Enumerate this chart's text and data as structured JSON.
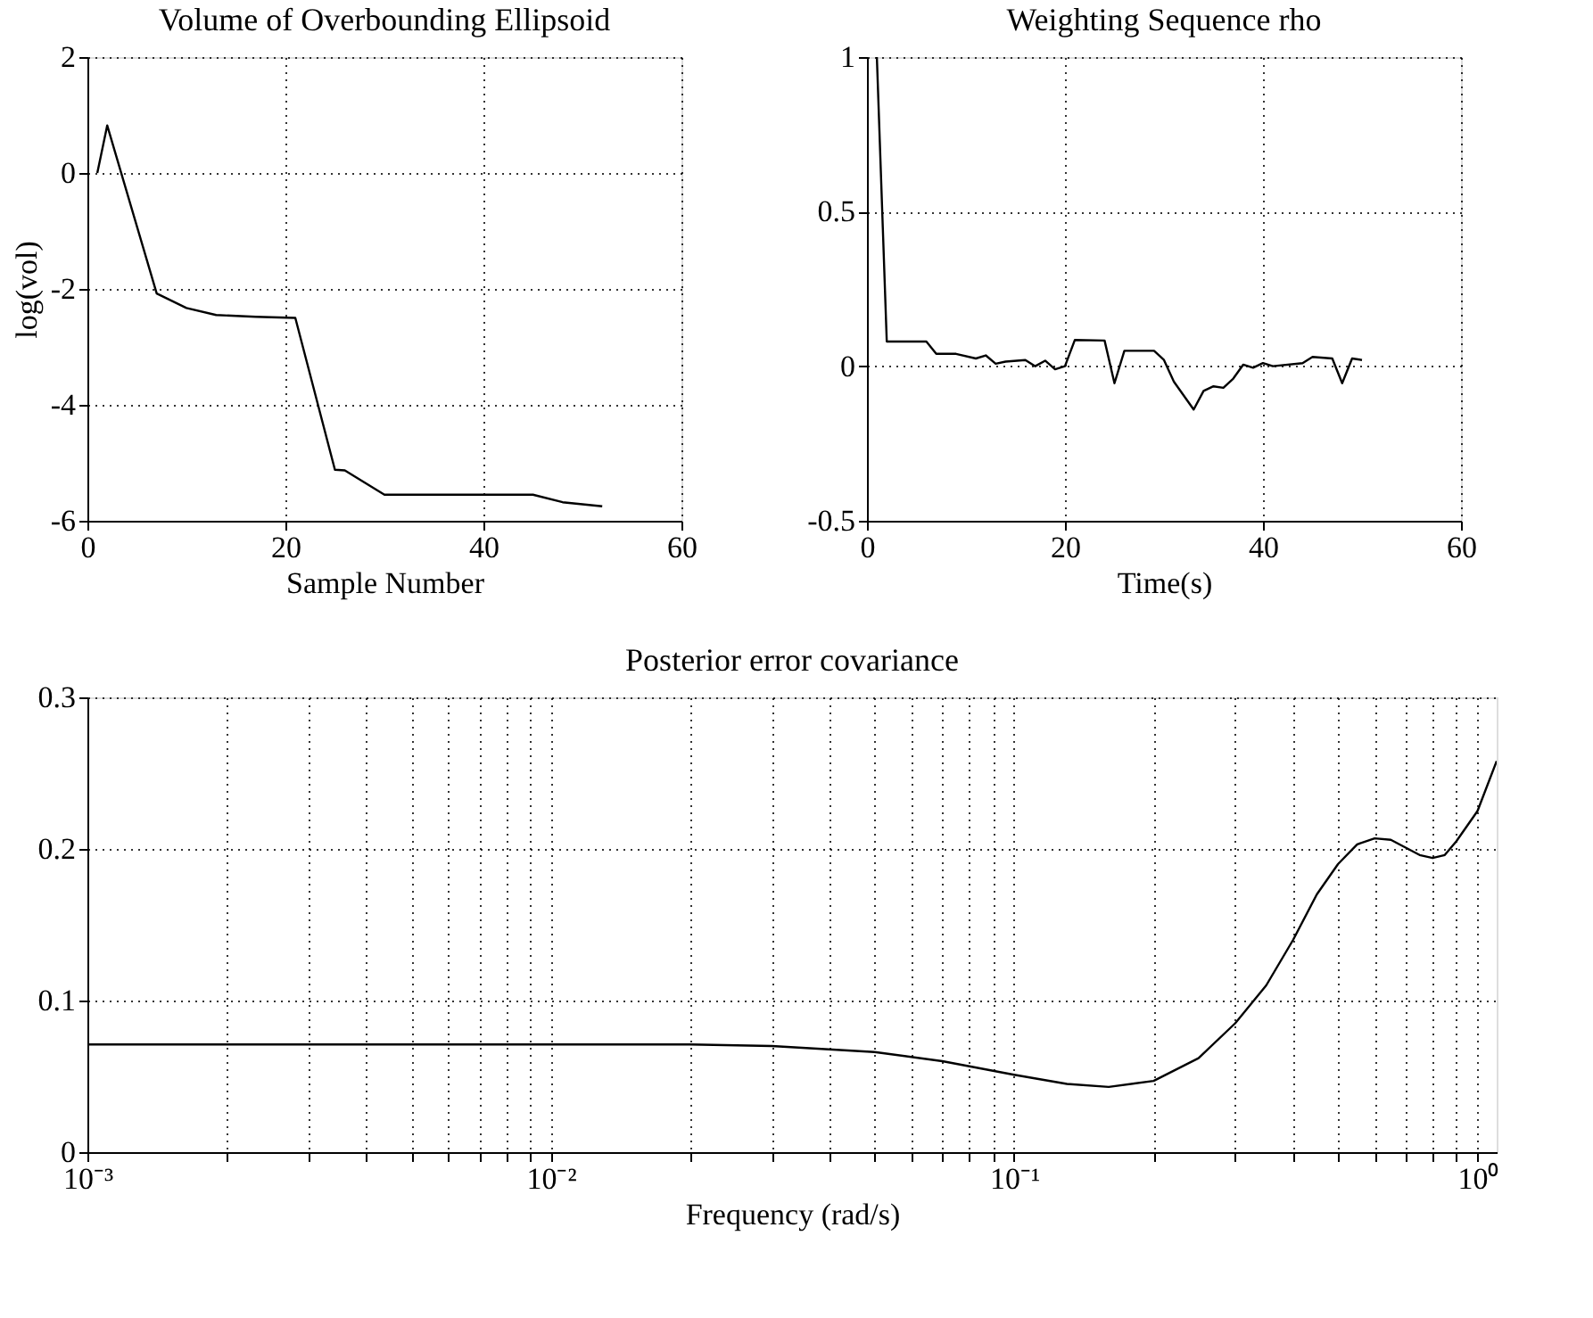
{
  "chart_data": [
    {
      "type": "line",
      "title": "Volume of Overbounding Ellipsoid",
      "xlabel": "Sample Number",
      "ylabel": "log(vol)",
      "grid": true,
      "xlim": [
        0,
        60
      ],
      "ylim": [
        -6,
        2
      ],
      "xticks": [
        0,
        20,
        40,
        60
      ],
      "yticks": [
        -6,
        -4,
        -2,
        0,
        2
      ],
      "series": [
        {
          "color": "#000000",
          "x": [
            1,
            2,
            7,
            10,
            13,
            17,
            21,
            25,
            26,
            30,
            45,
            48,
            52
          ],
          "values": [
            0,
            0.82,
            -2.08,
            -2.33,
            -2.45,
            -2.48,
            -2.5,
            -5.12,
            -5.13,
            -5.55,
            -5.55,
            -5.68,
            -5.75
          ]
        }
      ]
    },
    {
      "type": "line",
      "title": "Weighting Sequence rho",
      "xlabel": "Time(s)",
      "grid": true,
      "xlim": [
        0,
        60
      ],
      "ylim": [
        -0.5,
        1
      ],
      "xticks": [
        0,
        20,
        40,
        60
      ],
      "yticks": [
        -0.5,
        0,
        0.5,
        1
      ],
      "series": [
        {
          "color": "#000000",
          "x": [
            1,
            2,
            6,
            7,
            9,
            11,
            12,
            13,
            14,
            16,
            17,
            18,
            19,
            20,
            21,
            24,
            25,
            26,
            29,
            30,
            31,
            33,
            34,
            35,
            36,
            37,
            38,
            39,
            40,
            41,
            44,
            45,
            47,
            48,
            49,
            50
          ],
          "values": [
            1,
            0.08,
            0.08,
            0.04,
            0.04,
            0.025,
            0.035,
            0.008,
            0.015,
            0.02,
            0,
            0.018,
            -0.01,
            0,
            0.085,
            0.083,
            -0.055,
            0.05,
            0.05,
            0.02,
            -0.05,
            -0.14,
            -0.08,
            -0.065,
            -0.07,
            -0.04,
            0.005,
            -0.005,
            0.01,
            0,
            0.01,
            0.03,
            0.025,
            -0.055,
            0.025,
            0.02
          ]
        }
      ]
    },
    {
      "type": "line",
      "title": "Posterior error covariance",
      "xlabel": "Frequency (rad/s)",
      "grid": true,
      "log": "x",
      "xlim": [
        0.001,
        1.1
      ],
      "ylim": [
        0,
        0.3
      ],
      "yticks": [
        0,
        0.1,
        0.2,
        0.3
      ],
      "xticks": [
        {
          "value": 0.001,
          "label": "10⁻³"
        },
        {
          "value": 0.002,
          "label": null
        },
        {
          "value": 0.003,
          "label": null
        },
        {
          "value": 0.004,
          "label": null
        },
        {
          "value": 0.005,
          "label": null
        },
        {
          "value": 0.006,
          "label": null
        },
        {
          "value": 0.007,
          "label": null
        },
        {
          "value": 0.008,
          "label": null
        },
        {
          "value": 0.009,
          "label": null
        },
        {
          "value": 0.01,
          "label": "10⁻²"
        },
        {
          "value": 0.02,
          "label": null
        },
        {
          "value": 0.03,
          "label": null
        },
        {
          "value": 0.04,
          "label": null
        },
        {
          "value": 0.05,
          "label": null
        },
        {
          "value": 0.06,
          "label": null
        },
        {
          "value": 0.07,
          "label": null
        },
        {
          "value": 0.08,
          "label": null
        },
        {
          "value": 0.09,
          "label": null
        },
        {
          "value": 0.1,
          "label": "10⁻¹"
        },
        {
          "value": 0.2,
          "label": null
        },
        {
          "value": 0.3,
          "label": null
        },
        {
          "value": 0.4,
          "label": null
        },
        {
          "value": 0.5,
          "label": null
        },
        {
          "value": 0.6,
          "label": null
        },
        {
          "value": 0.7,
          "label": null
        },
        {
          "value": 0.8,
          "label": null
        },
        {
          "value": 0.9,
          "label": null
        },
        {
          "value": 1,
          "label": "10⁰"
        }
      ],
      "series": [
        {
          "color": "#000000",
          "x": [
            0.001,
            0.01,
            0.02,
            0.03,
            0.05,
            0.07,
            0.1,
            0.13,
            0.16,
            0.2,
            0.25,
            0.3,
            0.35,
            0.4,
            0.45,
            0.5,
            0.55,
            0.6,
            0.65,
            0.75,
            0.8,
            0.85,
            0.9,
            1.0,
            1.1
          ],
          "values": [
            0.071,
            0.071,
            0.071,
            0.07,
            0.066,
            0.06,
            0.051,
            0.045,
            0.043,
            0.047,
            0.062,
            0.085,
            0.11,
            0.14,
            0.17,
            0.19,
            0.203,
            0.207,
            0.206,
            0.196,
            0.194,
            0.196,
            0.205,
            0.225,
            0.258
          ]
        }
      ]
    }
  ]
}
